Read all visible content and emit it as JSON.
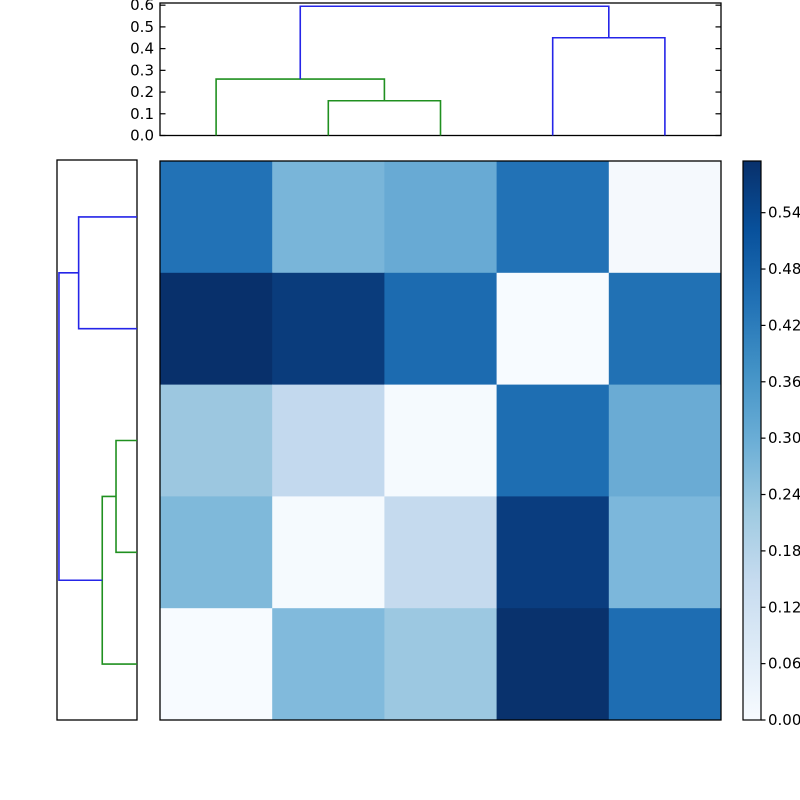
{
  "chart_data": {
    "type": "heatmap",
    "subtype": "clustermap-with-dendrograms",
    "title": "",
    "colormap": "Blues",
    "vmin": 0.0,
    "vmax": 0.595,
    "grid": false,
    "background": "#ffffff",
    "frame_color": "#000000",
    "line_colors": {
      "green": "#209020",
      "blue": "#2525e8"
    },
    "matrix": {
      "rows": 5,
      "cols": 5,
      "values": [
        [
          0.45,
          0.28,
          0.3,
          0.45,
          0.0
        ],
        [
          0.59,
          0.57,
          0.46,
          0.0,
          0.45
        ],
        [
          0.23,
          0.16,
          0.0,
          0.46,
          0.3
        ],
        [
          0.26,
          0.0,
          0.16,
          0.57,
          0.28
        ],
        [
          0.0,
          0.26,
          0.23,
          0.59,
          0.45
        ]
      ],
      "cell_colors": [
        [
          "#2272b6",
          "#79b5d9",
          "#68aad4",
          "#2272b6",
          "#f5f9fd"
        ],
        [
          "#08306b",
          "#0a3c7c",
          "#1c6bb0",
          "#f7fbff",
          "#2171b4"
        ],
        [
          "#9cc7e0",
          "#c3d9ee",
          "#f5fafe",
          "#1e6eb2",
          "#6aabd4"
        ],
        [
          "#7fb9da",
          "#f5fafe",
          "#c5daee",
          "#0a3d7f",
          "#7cb7db"
        ],
        [
          "#f7fbff",
          "#81badc",
          "#9cc8e1",
          "#09326d",
          "#1e6db2"
        ]
      ]
    },
    "top_dendrogram": {
      "orientation": "top",
      "axis_tick_labels": [
        "0.0",
        "0.1",
        "0.2",
        "0.3",
        "0.4",
        "0.5",
        "0.6"
      ],
      "axis_tick_values": [
        0.0,
        0.1,
        0.2,
        0.3,
        0.4,
        0.5,
        0.6
      ],
      "axis_range": [
        0,
        0.61
      ],
      "merges": [
        {
          "children": [
            "leaf1",
            "leaf2"
          ],
          "height": 0.16,
          "color": "green"
        },
        {
          "children": [
            "leaf0",
            "m0"
          ],
          "height": 0.26,
          "color": "green"
        },
        {
          "children": [
            "leaf3",
            "leaf4"
          ],
          "height": 0.45,
          "color": "blue"
        },
        {
          "children": [
            "m1",
            "m2"
          ],
          "height": 0.595,
          "color": "blue"
        }
      ]
    },
    "left_dendrogram": {
      "orientation": "left",
      "axis_range": [
        0,
        0.61
      ],
      "merges": [
        {
          "children": [
            "leaf0",
            "leaf1"
          ],
          "height": 0.445,
          "color": "blue"
        },
        {
          "children": [
            "leaf2",
            "leaf3"
          ],
          "height": 0.16,
          "color": "green"
        },
        {
          "children": [
            "m1",
            "leaf4"
          ],
          "height": 0.265,
          "color": "green"
        },
        {
          "children": [
            "m0",
            "m2"
          ],
          "height": 0.595,
          "color": "blue"
        }
      ]
    },
    "colorbar": {
      "position": "right",
      "tick_values": [
        0.0,
        0.06,
        0.12,
        0.18,
        0.24,
        0.3,
        0.36,
        0.42,
        0.48,
        0.54
      ],
      "tick_labels": [
        "0.00",
        "0.06",
        "0.12",
        "0.18",
        "0.24",
        "0.30",
        "0.36",
        "0.42",
        "0.48",
        "0.54"
      ],
      "gradient_stops_bottom_to_top": [
        "#f7fbff",
        "#deebf7",
        "#c6dbef",
        "#9ecae1",
        "#6baed6",
        "#4292c6",
        "#2171b5",
        "#08519c",
        "#08306b"
      ]
    }
  }
}
